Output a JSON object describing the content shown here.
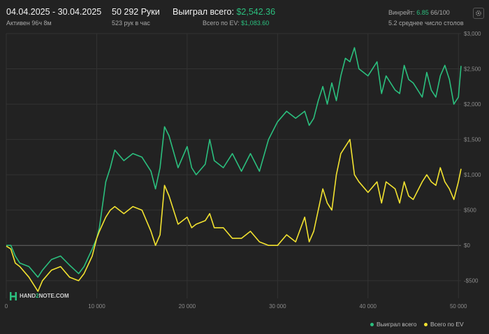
{
  "header": {
    "date_range": "04.04.2025 - 30.04.2025",
    "active_time": "Активен 96ч 8м",
    "hands": "50 292 Руки",
    "hands_per_hour": "523 рук в час",
    "won_total_label": "Выиграл всего:",
    "won_total_value": "$2,542.36",
    "ev_total_label": "Всего по EV:",
    "ev_total_value": "$1,083.60",
    "winrate_label": "Винрейт:",
    "winrate_value": "6.85",
    "winrate_hands": "66/100",
    "avg_tables": "5.2 среднее число столов"
  },
  "logo": {
    "text_a": "HAND",
    "text_b": "2",
    "text_c": "NOTE.COM"
  },
  "icons": {
    "settings": "gear-icon"
  },
  "colors": {
    "won": "#2bbf7e",
    "ev": "#f2e230",
    "background": "#222222",
    "grid": "#333333",
    "zero_line": "#666666"
  },
  "chart_data": {
    "type": "line",
    "xlim": [
      0,
      50292
    ],
    "ylim": [
      -750,
      3000
    ],
    "x_ticks": [
      0,
      10000,
      20000,
      30000,
      40000,
      50000
    ],
    "x_tick_labels": [
      "0",
      "10 000",
      "20 000",
      "30 000",
      "40 000",
      "50 000"
    ],
    "y_ticks": [
      -500,
      0,
      500,
      1000,
      1500,
      2000,
      2500,
      3000
    ],
    "y_tick_labels": [
      "-$500",
      "$0",
      "$500",
      "$1,000",
      "$1,500",
      "$2,000",
      "$2,500",
      "$3,000"
    ],
    "legend_position": "bottom-right",
    "grid": true,
    "series": [
      {
        "name": "Выиграл всего",
        "color": "#2bbf7e",
        "x": [
          0,
          500,
          1000,
          1500,
          2500,
          3500,
          4000,
          5000,
          6000,
          7000,
          8000,
          8600,
          9500,
          10000,
          10300,
          11000,
          11500,
          12000,
          13000,
          14000,
          15000,
          16000,
          16500,
          17000,
          17500,
          18000,
          19000,
          20000,
          20500,
          21000,
          22000,
          22500,
          23000,
          24000,
          25000,
          26000,
          27000,
          28000,
          29000,
          30000,
          31000,
          32000,
          33000,
          33500,
          34000,
          34500,
          35000,
          35500,
          36000,
          36500,
          37000,
          37500,
          38000,
          38500,
          39000,
          40000,
          41000,
          41500,
          42000,
          43000,
          43500,
          44000,
          44500,
          45000,
          46000,
          46500,
          47000,
          47500,
          48000,
          48500,
          49000,
          49500,
          50000,
          50292
        ],
        "y": [
          0,
          0,
          -150,
          -250,
          -300,
          -450,
          -350,
          -200,
          -150,
          -280,
          -400,
          -300,
          -50,
          100,
          250,
          900,
          1100,
          1350,
          1200,
          1300,
          1250,
          1050,
          800,
          1100,
          1680,
          1550,
          1100,
          1400,
          1100,
          1000,
          1150,
          1500,
          1200,
          1100,
          1300,
          1050,
          1300,
          1050,
          1500,
          1750,
          1900,
          1800,
          1900,
          1700,
          1800,
          2050,
          2250,
          2000,
          2300,
          2050,
          2400,
          2650,
          2600,
          2800,
          2500,
          2400,
          2600,
          2150,
          2400,
          2200,
          2150,
          2550,
          2350,
          2300,
          2100,
          2450,
          2200,
          2100,
          2400,
          2550,
          2350,
          2000,
          2100,
          2542
        ]
      },
      {
        "name": "Всего по EV",
        "color": "#f2e230",
        "x": [
          0,
          500,
          1000,
          1500,
          2500,
          3500,
          4000,
          5000,
          6000,
          7000,
          8000,
          8600,
          9500,
          10000,
          10300,
          11000,
          11500,
          12000,
          13000,
          14000,
          15000,
          16000,
          16500,
          17000,
          17500,
          18000,
          19000,
          20000,
          20500,
          21000,
          22000,
          22500,
          23000,
          24000,
          25000,
          26000,
          27000,
          28000,
          29000,
          30000,
          31000,
          32000,
          33000,
          33500,
          34000,
          34500,
          35000,
          35500,
          36000,
          36500,
          37000,
          37500,
          38000,
          38500,
          39000,
          40000,
          41000,
          41500,
          42000,
          43000,
          43500,
          44000,
          44500,
          45000,
          46000,
          46500,
          47000,
          47500,
          48000,
          48500,
          49000,
          49500,
          50000,
          50292
        ],
        "y": [
          -10,
          -50,
          -250,
          -300,
          -450,
          -650,
          -500,
          -350,
          -300,
          -450,
          -500,
          -400,
          -150,
          100,
          200,
          400,
          500,
          550,
          450,
          550,
          500,
          200,
          0,
          150,
          850,
          700,
          300,
          400,
          250,
          300,
          350,
          450,
          250,
          250,
          100,
          100,
          200,
          50,
          0,
          0,
          150,
          50,
          400,
          50,
          200,
          500,
          800,
          600,
          500,
          1000,
          1300,
          1400,
          1500,
          1000,
          900,
          750,
          900,
          600,
          900,
          800,
          600,
          900,
          700,
          650,
          900,
          1000,
          900,
          850,
          1100,
          900,
          800,
          650,
          900,
          1084
        ]
      }
    ]
  }
}
